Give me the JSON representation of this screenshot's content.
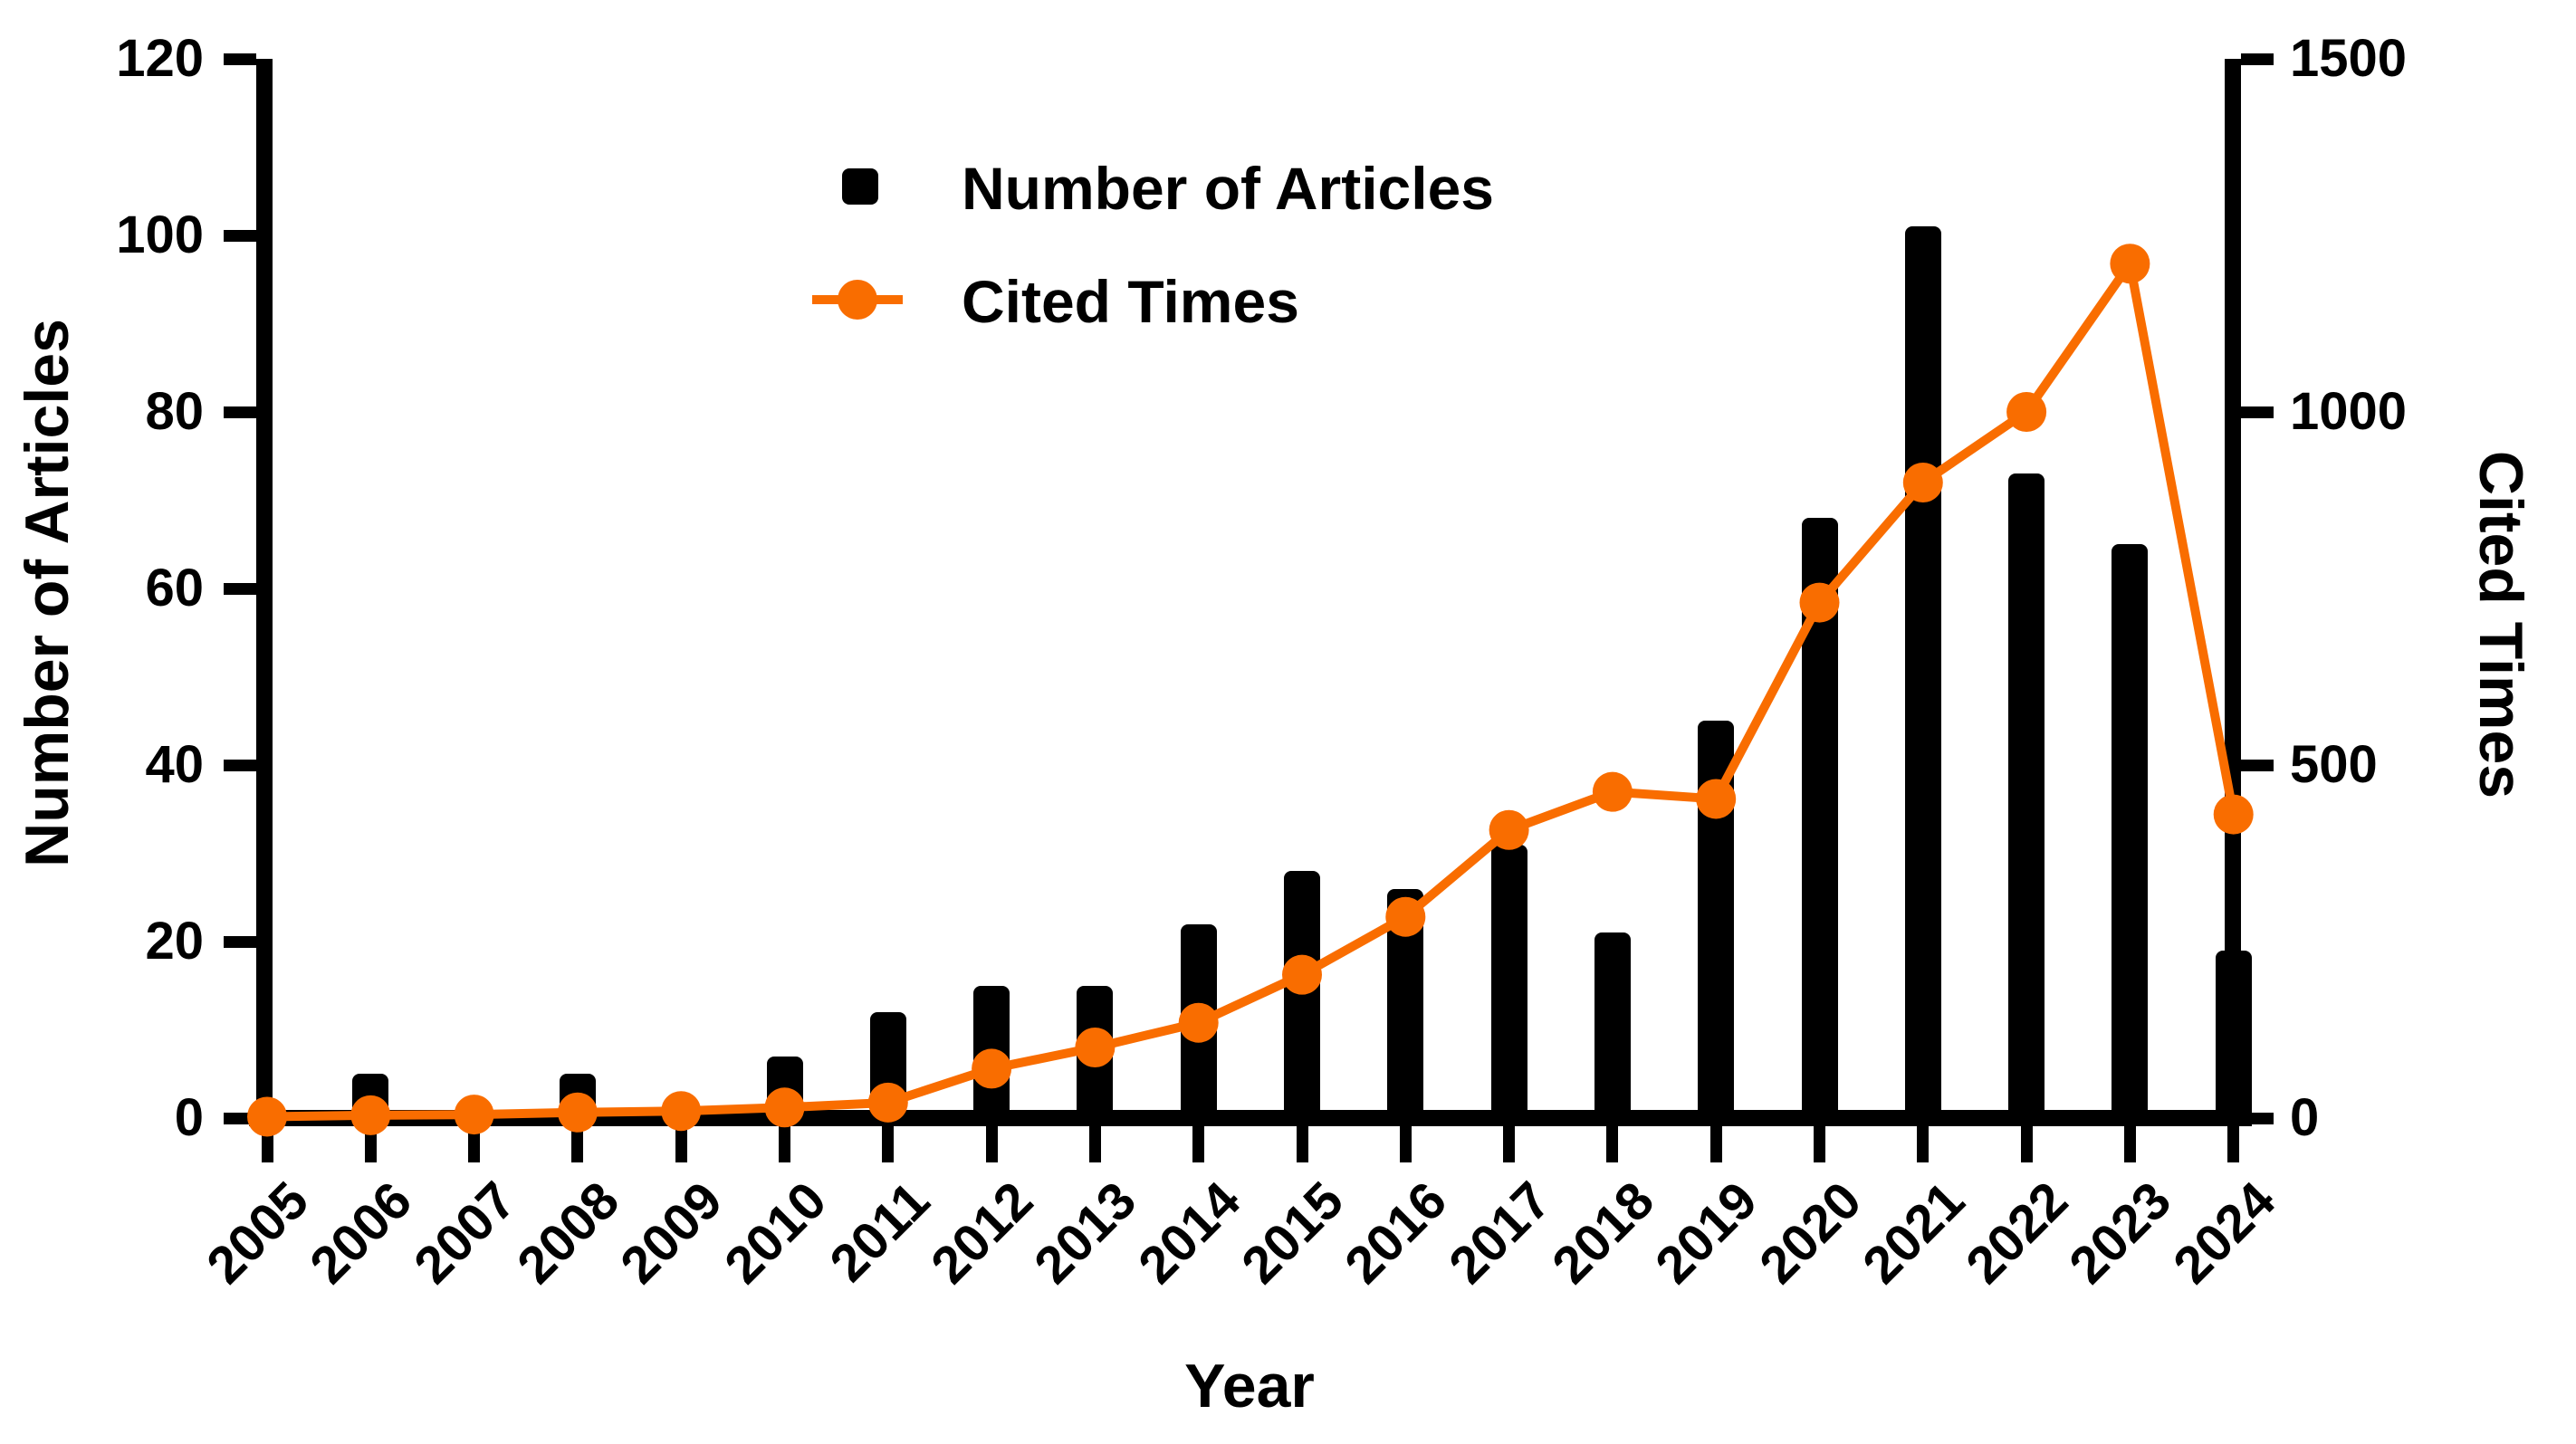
{
  "colors": {
    "bar": "#000000",
    "line": "#F96D00",
    "background": "#FFFFFF"
  },
  "legend": {
    "items": [
      {
        "label": "Number of Articles",
        "marker": "square-icon",
        "color": "#000000"
      },
      {
        "label": "Cited Times",
        "marker": "line-dot-icon",
        "color": "#F96D00"
      }
    ],
    "position": "top-left-inside"
  },
  "chart_data": {
    "type": "bar+line",
    "title": "",
    "categories": [
      "2005",
      "2006",
      "2007",
      "2008",
      "2009",
      "2010",
      "2011",
      "2012",
      "2013",
      "2014",
      "2015",
      "2016",
      "2017",
      "2018",
      "2019",
      "2020",
      "2021",
      "2022",
      "2023",
      "2024"
    ],
    "series": [
      {
        "name": "Number of Articles",
        "type": "bar",
        "axis": "left",
        "color": "#000000",
        "values": [
          1,
          5,
          1,
          5,
          1,
          7,
          12,
          15,
          15,
          22,
          28,
          26,
          31,
          21,
          45,
          68,
          101,
          73,
          65,
          19
        ]
      },
      {
        "name": "Cited Times",
        "type": "line",
        "axis": "right",
        "color": "#F96D00",
        "values": [
          2,
          4,
          5,
          8,
          10,
          15,
          22,
          70,
          100,
          135,
          203,
          285,
          408,
          462,
          452,
          730,
          900,
          1000,
          1210,
          430
        ]
      }
    ],
    "left_axis": {
      "label": "Number of Articles",
      "min": 0,
      "max": 120,
      "ticks": [
        0,
        20,
        40,
        60,
        80,
        100,
        120
      ]
    },
    "right_axis": {
      "label": "Cited Times",
      "min": 0,
      "max": 1500,
      "ticks": [
        0,
        500,
        1000,
        1500
      ]
    },
    "x_axis": {
      "label": "Year"
    },
    "grid": false,
    "legend_position": "top-left-inside"
  }
}
